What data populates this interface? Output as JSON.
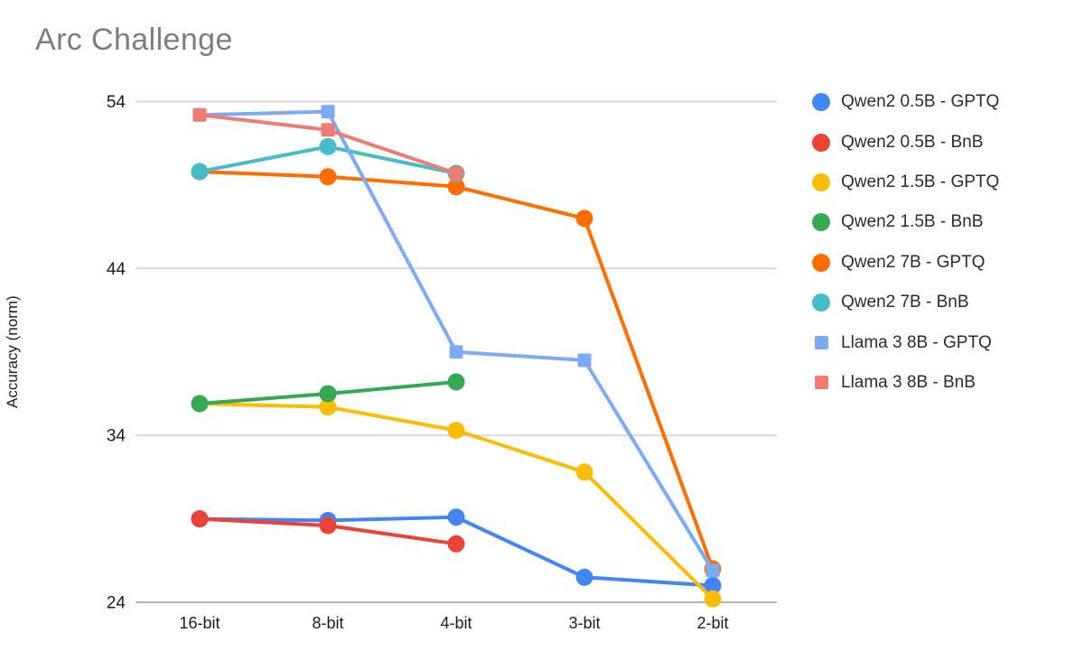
{
  "chart_data": {
    "type": "line",
    "title": "Arc Challenge",
    "xlabel": "",
    "ylabel": "Accuracy (norm)",
    "categories": [
      "16-bit",
      "8-bit",
      "4-bit",
      "3-bit",
      "2-bit"
    ],
    "ylim": [
      24,
      54
    ],
    "yticks": [
      24,
      34,
      44,
      54
    ],
    "grid": true,
    "legend_position": "right",
    "colors": {
      "gridline": "#d9d9d9",
      "baseline": "#b5b5b5",
      "title_text": "#7d7d7d",
      "axis_text": "#1c1c1c"
    },
    "series": [
      {
        "name": "Qwen2 0.5B - GPTQ",
        "color": "#4285F4",
        "marker": "circle",
        "values": [
          29.0,
          28.9,
          29.1,
          25.5,
          25.0
        ]
      },
      {
        "name": "Qwen2 0.5B - BnB",
        "color": "#EA4335",
        "marker": "circle",
        "values": [
          29.0,
          28.6,
          27.5,
          null,
          null
        ]
      },
      {
        "name": "Qwen2 1.5B - GPTQ",
        "color": "#FBBC04",
        "marker": "circle",
        "values": [
          35.9,
          35.7,
          34.3,
          31.8,
          24.2
        ]
      },
      {
        "name": "Qwen2 1.5B - BnB",
        "color": "#34A853",
        "marker": "circle",
        "values": [
          35.9,
          36.5,
          37.2,
          null,
          null
        ]
      },
      {
        "name": "Qwen2 7B - GPTQ",
        "color": "#FF6D01",
        "marker": "circle",
        "values": [
          49.8,
          49.5,
          48.9,
          47.0,
          26.0
        ]
      },
      {
        "name": "Qwen2 7B - BnB",
        "color": "#46BDC6",
        "marker": "circle",
        "values": [
          49.8,
          51.3,
          49.7,
          null,
          null
        ]
      },
      {
        "name": "Llama 3 8B - GPTQ",
        "color": "#7BAAF7",
        "marker": "square",
        "values": [
          53.2,
          53.4,
          39.0,
          38.5,
          25.9
        ]
      },
      {
        "name": "Llama 3 8B - BnB",
        "color": "#F07B72",
        "marker": "square",
        "values": [
          53.2,
          52.3,
          49.7,
          null,
          null
        ]
      }
    ]
  }
}
